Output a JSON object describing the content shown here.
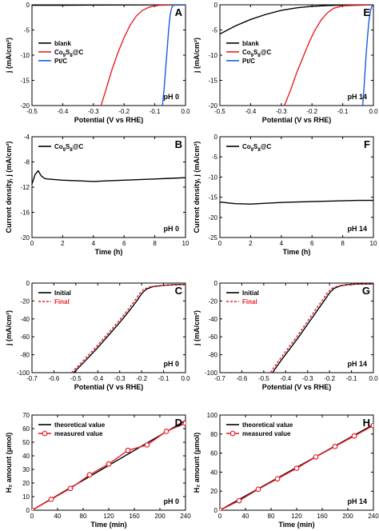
{
  "colors": {
    "black": "#000000",
    "red": "#e8202a",
    "blue": "#1a5ce0"
  },
  "chart_data": [
    {
      "type": "line",
      "panel": "A",
      "annotation": "pH 0",
      "xlabel": "Potential (V vs RHE)",
      "ylabel": "j (mA/cm²)",
      "xlim": [
        -0.5,
        0.0
      ],
      "ylim": [
        -20,
        0
      ],
      "xticks": [
        -0.5,
        -0.4,
        -0.3,
        -0.2,
        -0.1,
        0.0
      ],
      "xtick_labels": [
        "-0.5",
        "-0.4",
        "-0.3",
        "-0.2",
        "-0.1",
        "0.0"
      ],
      "yticks": [
        -20,
        -15,
        -10,
        -5,
        0
      ],
      "ytick_labels": [
        "-20",
        "-15",
        "-10",
        "-5",
        "0"
      ],
      "legend_position": "center-left",
      "series": [
        {
          "name": "blank",
          "color": "#000000",
          "x": [
            -0.5,
            -0.4,
            -0.3,
            -0.2,
            -0.1,
            -0.05,
            0.0
          ],
          "y": [
            -0.1,
            -0.08,
            -0.05,
            -0.03,
            -0.01,
            0.0,
            0.0
          ]
        },
        {
          "name": "Co9S8@C",
          "color": "#e8202a",
          "x": [
            -0.275,
            -0.26,
            -0.24,
            -0.22,
            -0.2,
            -0.18,
            -0.16,
            -0.14,
            -0.12,
            -0.1,
            -0.08,
            0.0
          ],
          "y": [
            -20,
            -17,
            -13,
            -9.5,
            -6.5,
            -4,
            -2.2,
            -1.1,
            -0.5,
            -0.2,
            -0.1,
            0.0
          ]
        },
        {
          "name": "Pt/C",
          "color": "#1a5ce0",
          "x": [
            -0.075,
            -0.07,
            -0.065,
            -0.06,
            -0.055,
            -0.05,
            -0.045,
            -0.04,
            0.0
          ],
          "y": [
            -20,
            -17,
            -13,
            -9,
            -5,
            -2,
            -0.6,
            -0.1,
            0.0
          ]
        }
      ]
    },
    {
      "type": "line",
      "panel": "E",
      "annotation": "pH 14",
      "xlabel": "Potential (V vs RHE)",
      "ylabel": "j (mA/cm²)",
      "xlim": [
        -0.5,
        0.0
      ],
      "ylim": [
        -20,
        0
      ],
      "xticks": [
        -0.5,
        -0.4,
        -0.3,
        -0.2,
        -0.1,
        0.0
      ],
      "xtick_labels": [
        "-0.5",
        "-0.4",
        "-0.3",
        "-0.2",
        "-0.1",
        "0.0"
      ],
      "yticks": [
        -20,
        -15,
        -10,
        -5,
        0
      ],
      "ytick_labels": [
        "-20",
        "-15",
        "-10",
        "-5",
        "0"
      ],
      "legend_position": "center-left",
      "series": [
        {
          "name": "blank",
          "color": "#000000",
          "x": [
            -0.5,
            -0.45,
            -0.4,
            -0.35,
            -0.3,
            -0.25,
            -0.2,
            -0.15,
            -0.1,
            -0.05,
            0.0
          ],
          "y": [
            -5.8,
            -4.2,
            -2.9,
            -1.9,
            -1.1,
            -0.6,
            -0.3,
            -0.15,
            -0.05,
            0.0,
            0.0
          ]
        },
        {
          "name": "Co9S8@C",
          "color": "#e8202a",
          "x": [
            -0.29,
            -0.27,
            -0.25,
            -0.23,
            -0.21,
            -0.19,
            -0.17,
            -0.15,
            -0.13,
            -0.1,
            0.0
          ],
          "y": [
            -20,
            -17,
            -13.5,
            -10.5,
            -7.5,
            -5,
            -3,
            -1.6,
            -0.7,
            -0.2,
            0.0
          ]
        },
        {
          "name": "Pt/C",
          "color": "#1a5ce0",
          "x": [
            -0.035,
            -0.03,
            -0.025,
            -0.02,
            -0.015,
            -0.01,
            -0.005,
            0.0
          ],
          "y": [
            -20,
            -16,
            -11,
            -7,
            -3.5,
            -1.2,
            -0.3,
            0.0
          ]
        }
      ]
    },
    {
      "type": "line",
      "panel": "B",
      "annotation": "pH 0",
      "xlabel": "Time (h)",
      "ylabel": "Current density, j (mA/cm²)",
      "xlim": [
        0,
        10
      ],
      "ylim": [
        -20,
        -4
      ],
      "xticks": [
        0,
        2,
        4,
        6,
        8,
        10
      ],
      "xtick_labels": [
        "0",
        "2",
        "4",
        "6",
        "8",
        "10"
      ],
      "yticks": [
        -20,
        -16,
        -12,
        -8,
        -4
      ],
      "ytick_labels": [
        "-20",
        "-16",
        "-12",
        "-8",
        "-4"
      ],
      "legend_position": "top-left",
      "series": [
        {
          "name": "Co9S8@C",
          "color": "#000000",
          "x": [
            0,
            0.2,
            0.4,
            0.6,
            0.8,
            1.0,
            1.5,
            2,
            3,
            4,
            5,
            6,
            7,
            8,
            9,
            10
          ],
          "y": [
            -11.5,
            -10.0,
            -9.4,
            -10.2,
            -10.6,
            -10.7,
            -10.8,
            -10.9,
            -11.0,
            -11.1,
            -11.0,
            -10.9,
            -10.8,
            -10.7,
            -10.6,
            -10.5
          ]
        }
      ]
    },
    {
      "type": "line",
      "panel": "F",
      "annotation": "pH 14",
      "xlabel": "Time (h)",
      "ylabel": "Current density, j (mA/cm²)",
      "xlim": [
        0,
        10
      ],
      "ylim": [
        -25,
        0
      ],
      "xticks": [
        0,
        2,
        4,
        6,
        8,
        10
      ],
      "xtick_labels": [
        "0",
        "2",
        "4",
        "6",
        "8",
        "10"
      ],
      "yticks": [
        -25,
        -20,
        -15,
        -10,
        -5,
        0
      ],
      "ytick_labels": [
        "-25",
        "-20",
        "-15",
        "-10",
        "-5",
        "0"
      ],
      "legend_position": "top-left",
      "series": [
        {
          "name": "Co9S8@C",
          "color": "#000000",
          "x": [
            0,
            0.5,
            1,
            2,
            3,
            4,
            5,
            6,
            7,
            8,
            9,
            10
          ],
          "y": [
            -16.2,
            -16.4,
            -16.6,
            -16.7,
            -16.5,
            -16.3,
            -16.2,
            -16.1,
            -16.0,
            -15.9,
            -15.8,
            -15.8
          ]
        }
      ]
    },
    {
      "type": "line",
      "panel": "C",
      "annotation": "pH 0",
      "xlabel": "Potential (V vs RHE)",
      "ylabel": "j (mA/cm²)",
      "xlim": [
        -0.7,
        0.0
      ],
      "ylim": [
        -100,
        0
      ],
      "xticks": [
        -0.7,
        -0.6,
        -0.5,
        -0.4,
        -0.3,
        -0.2,
        -0.1,
        0.0
      ],
      "xtick_labels": [
        "-0.7",
        "-0.6",
        "-0.5",
        "-0.4",
        "-0.3",
        "-0.2",
        "-0.1",
        "0.0"
      ],
      "yticks": [
        -100,
        -80,
        -60,
        -40,
        -20,
        0
      ],
      "ytick_labels": [
        "-100",
        "-80",
        "-60",
        "-40",
        "-20",
        "0"
      ],
      "legend_position": "top-left",
      "series": [
        {
          "name": "Initial",
          "color": "#000000",
          "dash": false,
          "x": [
            -0.51,
            -0.45,
            -0.4,
            -0.35,
            -0.3,
            -0.25,
            -0.22,
            -0.2,
            -0.18,
            -0.15,
            -0.1,
            -0.05,
            0.0
          ],
          "y": [
            -100,
            -85,
            -72,
            -58,
            -44,
            -29,
            -19,
            -12,
            -7,
            -4,
            -2.5,
            -1.8,
            -1.5
          ]
        },
        {
          "name": "Final",
          "color": "#e8202a",
          "dash": true,
          "x": [
            -0.52,
            -0.46,
            -0.41,
            -0.36,
            -0.31,
            -0.26,
            -0.23,
            -0.21,
            -0.19,
            -0.16,
            -0.1,
            -0.05,
            0.0
          ],
          "y": [
            -100,
            -85,
            -72,
            -58,
            -44,
            -29,
            -19,
            -12,
            -7,
            -4,
            -2.5,
            -1.8,
            -1.5
          ]
        }
      ]
    },
    {
      "type": "line",
      "panel": "G",
      "annotation": "pH 14",
      "xlabel": "Potential (V vs RHE)",
      "ylabel": "j (mA/cm²)",
      "xlim": [
        -0.7,
        0.0
      ],
      "ylim": [
        -100,
        0
      ],
      "xticks": [
        -0.7,
        -0.6,
        -0.5,
        -0.4,
        -0.3,
        -0.2,
        -0.1,
        0.0
      ],
      "xtick_labels": [
        "-0.7",
        "-0.6",
        "-0.5",
        "-0.4",
        "-0.3",
        "-0.2",
        "-0.1",
        "0.0"
      ],
      "yticks": [
        -100,
        -80,
        -60,
        -40,
        -20,
        0
      ],
      "ytick_labels": [
        "-100",
        "-80",
        "-60",
        "-40",
        "-20",
        "0"
      ],
      "legend_position": "top-left",
      "series": [
        {
          "name": "Initial",
          "color": "#000000",
          "dash": false,
          "x": [
            -0.46,
            -0.42,
            -0.38,
            -0.34,
            -0.3,
            -0.26,
            -0.22,
            -0.2,
            -0.18,
            -0.15,
            -0.12,
            -0.08,
            -0.04,
            0.0
          ],
          "y": [
            -100,
            -86,
            -73,
            -60,
            -46,
            -32,
            -18,
            -11,
            -6,
            -3,
            -1.8,
            -1.2,
            -1.0,
            -1.0
          ]
        },
        {
          "name": "Final",
          "color": "#e8202a",
          "dash": true,
          "x": [
            -0.47,
            -0.43,
            -0.39,
            -0.35,
            -0.31,
            -0.27,
            -0.23,
            -0.21,
            -0.19,
            -0.16,
            -0.12,
            -0.08,
            -0.04,
            0.0
          ],
          "y": [
            -100,
            -86,
            -73,
            -60,
            -46,
            -32,
            -18,
            -11,
            -6,
            -3,
            -1.8,
            -1.2,
            -1.0,
            -1.0
          ]
        }
      ]
    },
    {
      "type": "line",
      "panel": "D",
      "annotation": "pH 0",
      "xlabel": "Time (min)",
      "ylabel": "H₂ amount (μmol)",
      "xlim": [
        0,
        240
      ],
      "ylim": [
        0,
        70
      ],
      "xticks": [
        0,
        40,
        80,
        120,
        160,
        200,
        240
      ],
      "xtick_labels": [
        "0",
        "40",
        "80",
        "120",
        "160",
        "200",
        "240"
      ],
      "yticks": [
        0,
        10,
        20,
        30,
        40,
        50,
        60,
        70
      ],
      "ytick_labels": [
        "0",
        "10",
        "20",
        "30",
        "40",
        "50",
        "60",
        "70"
      ],
      "legend_position": "top-left",
      "series": [
        {
          "name": "theoretical value",
          "color": "#000000",
          "marker": false,
          "x": [
            0,
            240
          ],
          "y": [
            0,
            66
          ]
        },
        {
          "name": "measured value",
          "color": "#e8202a",
          "marker": true,
          "x": [
            0,
            30,
            60,
            90,
            120,
            150,
            180,
            210,
            240
          ],
          "y": [
            0,
            8,
            16,
            26,
            34,
            44,
            48,
            58,
            64
          ]
        }
      ]
    },
    {
      "type": "line",
      "panel": "H",
      "annotation": "pH 14",
      "xlabel": "Time (min)",
      "ylabel": "H₂ amount (μmol)",
      "xlim": [
        0,
        240
      ],
      "ylim": [
        0,
        100
      ],
      "xticks": [
        0,
        40,
        80,
        120,
        160,
        200,
        240
      ],
      "xtick_labels": [
        "0",
        "40",
        "80",
        "120",
        "160",
        "200",
        "240"
      ],
      "yticks": [
        0,
        20,
        40,
        60,
        80,
        100
      ],
      "ytick_labels": [
        "0",
        "20",
        "40",
        "60",
        "80",
        "100"
      ],
      "legend_position": "top-left",
      "series": [
        {
          "name": "theoretical value",
          "color": "#000000",
          "marker": false,
          "x": [
            0,
            240
          ],
          "y": [
            0,
            90
          ]
        },
        {
          "name": "measured value",
          "color": "#e8202a",
          "marker": true,
          "x": [
            0,
            30,
            60,
            90,
            120,
            150,
            180,
            210,
            240
          ],
          "y": [
            0,
            10,
            22,
            33,
            44,
            56,
            67,
            78,
            89
          ]
        }
      ]
    }
  ]
}
